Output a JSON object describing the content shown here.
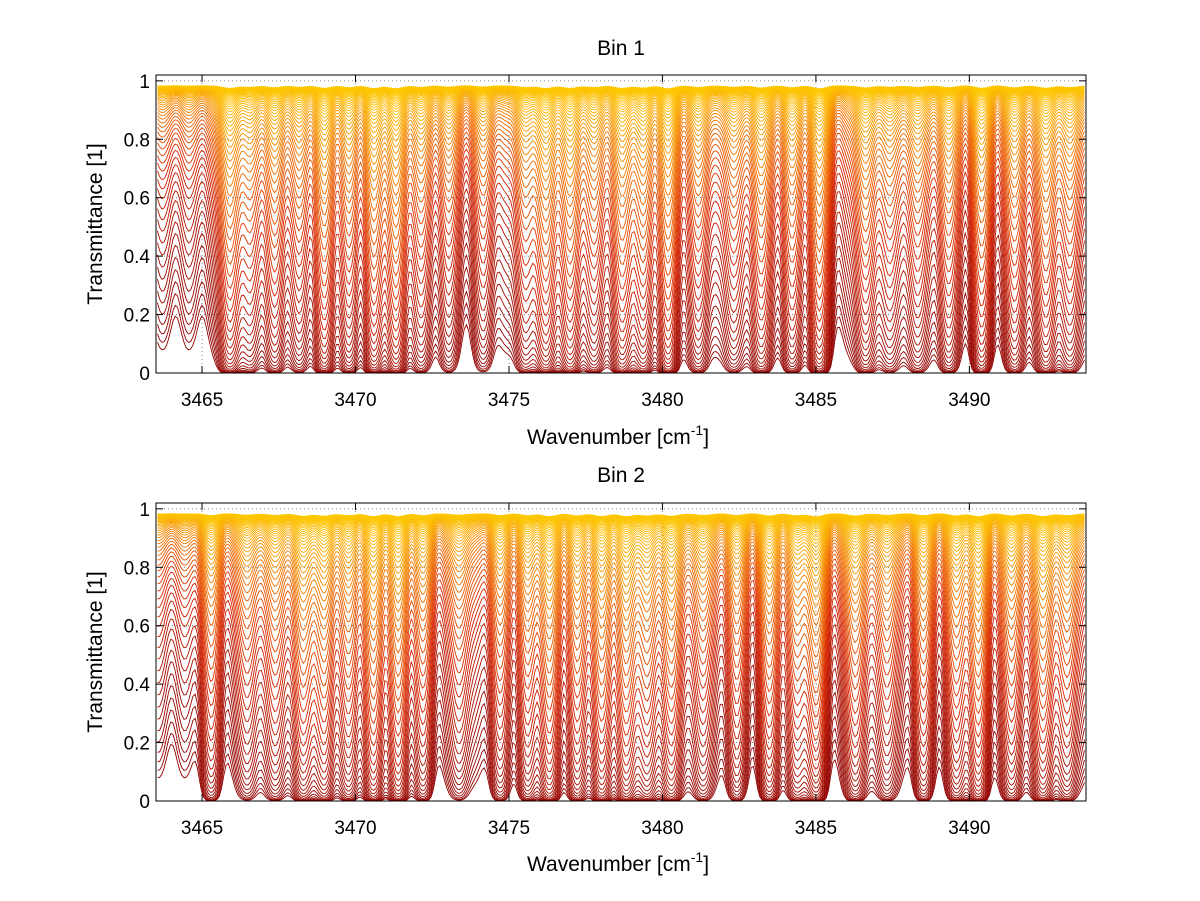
{
  "chart_data": [
    {
      "type": "line",
      "title": "Bin 1",
      "xlabel": "Wavenumber [cm",
      "xlabel_superscript": "-1",
      "xlabel_suffix": "]",
      "ylabel": "Transmittance [1]",
      "xlim": [
        3463.5,
        3493.8
      ],
      "ylim": [
        0,
        1.02
      ],
      "xticks": [
        "3465",
        "3470",
        "3475",
        "3480",
        "3485",
        "3490"
      ],
      "xtick_values": [
        3465,
        3470,
        3475,
        3480,
        3485,
        3490
      ],
      "yticks": [
        "0",
        "0.2",
        "0.4",
        "0.6",
        "0.8",
        "1"
      ],
      "ytick_values": [
        0,
        0.2,
        0.4,
        0.6,
        0.8,
        1.0
      ],
      "grid": true,
      "colormap": "autumn (dark red for low transmittance to yellow for high transmittance)",
      "series_count": 60,
      "line_features": [
        {
          "x": 3465.9,
          "depth": 0.9
        },
        {
          "x": 3466.6,
          "depth": 0.5
        },
        {
          "x": 3467.4,
          "depth": 0.6
        },
        {
          "x": 3468.2,
          "depth": 0.45
        },
        {
          "x": 3469.0,
          "depth": 0.8
        },
        {
          "x": 3469.8,
          "depth": 0.55
        },
        {
          "x": 3470.6,
          "depth": 0.85
        },
        {
          "x": 3471.3,
          "depth": 0.95
        },
        {
          "x": 3472.1,
          "depth": 0.5
        },
        {
          "x": 3473.0,
          "depth": 0.4
        },
        {
          "x": 3474.2,
          "depth": 0.35
        },
        {
          "x": 3475.5,
          "depth": 0.55
        },
        {
          "x": 3476.2,
          "depth": 0.95
        },
        {
          "x": 3477.0,
          "depth": 0.9
        },
        {
          "x": 3477.8,
          "depth": 0.6
        },
        {
          "x": 3478.7,
          "depth": 0.9
        },
        {
          "x": 3479.4,
          "depth": 0.7
        },
        {
          "x": 3480.2,
          "depth": 0.95
        },
        {
          "x": 3481.2,
          "depth": 0.55
        },
        {
          "x": 3482.3,
          "depth": 0.5
        },
        {
          "x": 3483.2,
          "depth": 0.75
        },
        {
          "x": 3484.2,
          "depth": 0.6
        },
        {
          "x": 3485.1,
          "depth": 0.95
        },
        {
          "x": 3486.6,
          "depth": 0.7
        },
        {
          "x": 3487.4,
          "depth": 0.5
        },
        {
          "x": 3488.3,
          "depth": 0.55
        },
        {
          "x": 3489.3,
          "depth": 0.6
        },
        {
          "x": 3490.4,
          "depth": 0.75
        },
        {
          "x": 3491.5,
          "depth": 0.65
        },
        {
          "x": 3492.5,
          "depth": 0.85
        },
        {
          "x": 3493.3,
          "depth": 0.6
        }
      ]
    },
    {
      "type": "line",
      "title": "Bin 2",
      "xlabel": "Wavenumber [cm",
      "xlabel_superscript": "-1",
      "xlabel_suffix": "]",
      "ylabel": "Transmittance [1]",
      "xlim": [
        3463.5,
        3493.8
      ],
      "ylim": [
        0,
        1.02
      ],
      "xticks": [
        "3465",
        "3470",
        "3475",
        "3480",
        "3485",
        "3490"
      ],
      "xtick_values": [
        3465,
        3470,
        3475,
        3480,
        3485,
        3490
      ],
      "yticks": [
        "0",
        "0.2",
        "0.4",
        "0.6",
        "0.8",
        "1"
      ],
      "ytick_values": [
        0,
        0.2,
        0.4,
        0.6,
        0.8,
        1.0
      ],
      "grid": true,
      "colormap": "autumn (dark red for low transmittance to yellow for high transmittance)",
      "series_count": 60,
      "line_features": [
        {
          "x": 3465.3,
          "depth": 0.5
        },
        {
          "x": 3466.5,
          "depth": 0.45
        },
        {
          "x": 3467.4,
          "depth": 0.55
        },
        {
          "x": 3468.3,
          "depth": 0.85
        },
        {
          "x": 3469.0,
          "depth": 0.8
        },
        {
          "x": 3469.8,
          "depth": 0.6
        },
        {
          "x": 3470.6,
          "depth": 0.9
        },
        {
          "x": 3471.4,
          "depth": 0.9
        },
        {
          "x": 3472.2,
          "depth": 0.55
        },
        {
          "x": 3473.4,
          "depth": 0.45
        },
        {
          "x": 3474.7,
          "depth": 0.5
        },
        {
          "x": 3475.6,
          "depth": 0.55
        },
        {
          "x": 3476.3,
          "depth": 0.9
        },
        {
          "x": 3477.2,
          "depth": 0.65
        },
        {
          "x": 3478.0,
          "depth": 0.9
        },
        {
          "x": 3478.8,
          "depth": 0.95
        },
        {
          "x": 3479.5,
          "depth": 0.75
        },
        {
          "x": 3480.3,
          "depth": 0.85
        },
        {
          "x": 3481.3,
          "depth": 0.55
        },
        {
          "x": 3482.4,
          "depth": 0.5
        },
        {
          "x": 3483.5,
          "depth": 0.7
        },
        {
          "x": 3484.4,
          "depth": 0.6
        },
        {
          "x": 3485.0,
          "depth": 0.95
        },
        {
          "x": 3486.3,
          "depth": 0.75
        },
        {
          "x": 3487.3,
          "depth": 0.55
        },
        {
          "x": 3488.5,
          "depth": 0.55
        },
        {
          "x": 3489.6,
          "depth": 0.65
        },
        {
          "x": 3490.3,
          "depth": 0.9
        },
        {
          "x": 3491.4,
          "depth": 0.7
        },
        {
          "x": 3492.4,
          "depth": 0.95
        },
        {
          "x": 3493.2,
          "depth": 0.65
        }
      ]
    }
  ]
}
